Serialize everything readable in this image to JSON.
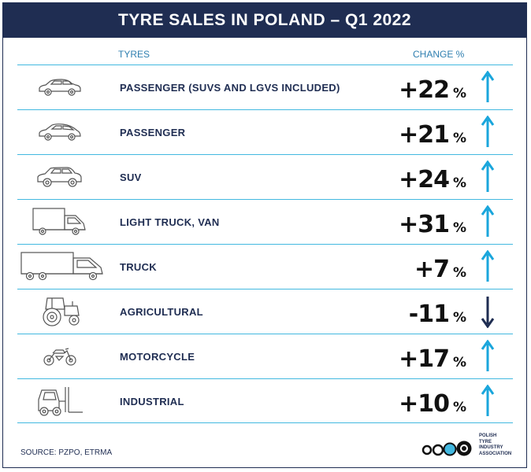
{
  "title": "TYRE SALES IN POLAND – Q1 2022",
  "columns": {
    "tyres": "TYRES",
    "change": "CHANGE %"
  },
  "rows": [
    {
      "label": "PASSENGER (SUVS AND LGVS INCLUDED)",
      "value": "+22",
      "unit": "%",
      "trend": "up",
      "icon": "car-icon"
    },
    {
      "label": "PASSENGER",
      "value": "+21",
      "unit": "%",
      "trend": "up",
      "icon": "hatchback-icon"
    },
    {
      "label": "SUV",
      "value": "+24",
      "unit": "%",
      "trend": "up",
      "icon": "suv-icon"
    },
    {
      "label": "LIGHT TRUCK, VAN",
      "value": "+31",
      "unit": "%",
      "trend": "up",
      "icon": "van-icon"
    },
    {
      "label": "TRUCK",
      "value": "+7",
      "unit": "%",
      "trend": "up",
      "icon": "truck-icon"
    },
    {
      "label": "AGRICULTURAL",
      "value": "-11",
      "unit": "%",
      "trend": "down",
      "icon": "tractor-icon"
    },
    {
      "label": "MOTORCYCLE",
      "value": "+17",
      "unit": "%",
      "trend": "up",
      "icon": "motorcycle-icon"
    },
    {
      "label": "INDUSTRIAL",
      "value": "+10",
      "unit": "%",
      "trend": "up",
      "icon": "forklift-icon"
    }
  ],
  "source": "SOURCE: PZPO, ETRMA",
  "logo": {
    "lines": [
      "POLISH",
      "TYRE",
      "INDUSTRY",
      "ASSOCIATION"
    ]
  },
  "colors": {
    "navy": "#1f2d52",
    "accent": "#42b8e0",
    "up_arrow": "#1aa6dc",
    "down_arrow": "#1f2d52"
  }
}
